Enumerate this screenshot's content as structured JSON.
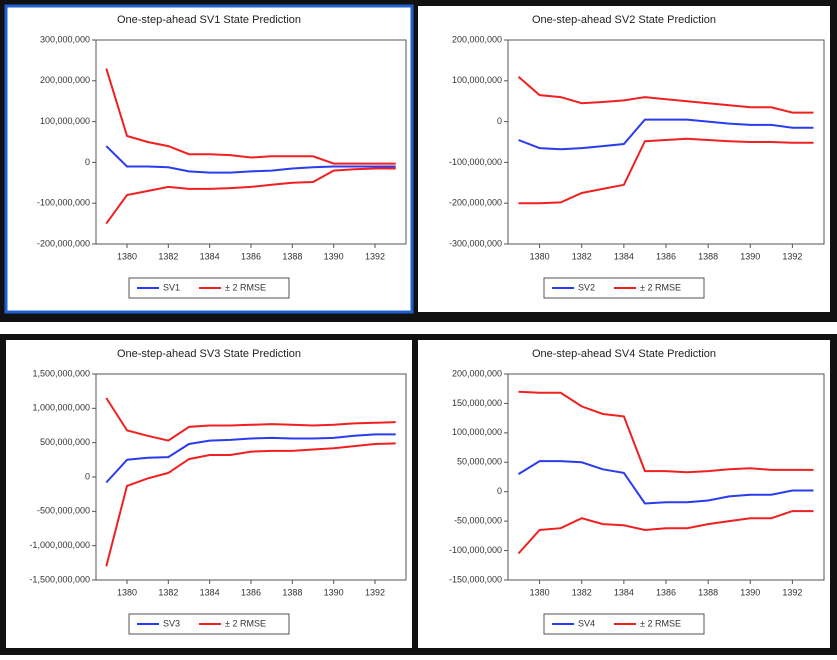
{
  "chart_data": [
    {
      "type": "line",
      "title": "One-step-ahead SV1 State Prediction",
      "x": [
        1379,
        1380,
        1381,
        1382,
        1383,
        1384,
        1385,
        1386,
        1387,
        1388,
        1389,
        1390,
        1391,
        1392,
        1393
      ],
      "xlim": [
        1378.5,
        1393.5
      ],
      "xticks": [
        1380,
        1382,
        1384,
        1386,
        1388,
        1390,
        1392
      ],
      "ylim": [
        -200000000,
        300000000
      ],
      "yticks": [
        {
          "value": -200000000,
          "label": "-200,000,000"
        },
        {
          "value": -100000000,
          "label": "-100,000,000"
        },
        0,
        {
          "value": 100000000,
          "label": "100,000,000"
        },
        {
          "value": 200000000,
          "label": "200,000,000"
        },
        {
          "value": 300000000,
          "label": "300,000,000"
        }
      ],
      "selected": true,
      "series": [
        {
          "name": "SV1",
          "color": "#2b3bf0",
          "values": [
            40000000,
            -10000000,
            -10000000,
            -12000000,
            -22000000,
            -25000000,
            -25000000,
            -22000000,
            -20000000,
            -15000000,
            -12000000,
            -10000000,
            -10000000,
            -10000000,
            -10000000
          ]
        },
        {
          "name": "± 2 RMSE",
          "color": "#f02020",
          "values": [
            230000000,
            65000000,
            50000000,
            40000000,
            20000000,
            20000000,
            18000000,
            12000000,
            15000000,
            15000000,
            15000000,
            -3000000,
            -3000000,
            -3000000,
            -3000000
          ],
          "lower": [
            -150000000,
            -80000000,
            -70000000,
            -60000000,
            -65000000,
            -65000000,
            -63000000,
            -60000000,
            -55000000,
            -50000000,
            -48000000,
            -20000000,
            -17000000,
            -15000000,
            -15000000
          ]
        }
      ]
    },
    {
      "type": "line",
      "title": "One-step-ahead SV2 State Prediction",
      "x": [
        1379,
        1380,
        1381,
        1382,
        1383,
        1384,
        1385,
        1386,
        1387,
        1388,
        1389,
        1390,
        1391,
        1392,
        1393
      ],
      "xlim": [
        1378.5,
        1393.5
      ],
      "xticks": [
        1380,
        1382,
        1384,
        1386,
        1388,
        1390,
        1392
      ],
      "ylim": [
        -300000000,
        200000000
      ],
      "yticks": [
        {
          "value": -300000000,
          "label": "-300,000,000"
        },
        {
          "value": -200000000,
          "label": "-200,000,000"
        },
        {
          "value": -100000000,
          "label": "-100,000,000"
        },
        0,
        {
          "value": 100000000,
          "label": "100,000,000"
        },
        {
          "value": 200000000,
          "label": "200,000,000"
        }
      ],
      "series": [
        {
          "name": "SV2",
          "color": "#2b3bf0",
          "values": [
            -45000000,
            -65000000,
            -68000000,
            -65000000,
            -60000000,
            -55000000,
            5000000,
            5000000,
            5000000,
            0,
            -5000000,
            -8000000,
            -8000000,
            -15000000,
            -15000000
          ]
        },
        {
          "name": "± 2 RMSE",
          "color": "#f02020",
          "values": [
            110000000,
            65000000,
            60000000,
            45000000,
            48000000,
            52000000,
            60000000,
            55000000,
            50000000,
            45000000,
            40000000,
            35000000,
            35000000,
            22000000,
            22000000
          ],
          "lower": [
            -200000000,
            -200000000,
            -198000000,
            -175000000,
            -165000000,
            -155000000,
            -48000000,
            -45000000,
            -42000000,
            -45000000,
            -48000000,
            -50000000,
            -50000000,
            -52000000,
            -52000000
          ]
        }
      ]
    },
    {
      "type": "line",
      "title": "One-step-ahead SV3 State Prediction",
      "x": [
        1379,
        1380,
        1381,
        1382,
        1383,
        1384,
        1385,
        1386,
        1387,
        1388,
        1389,
        1390,
        1391,
        1392,
        1393
      ],
      "xlim": [
        1378.5,
        1393.5
      ],
      "xticks": [
        1380,
        1382,
        1384,
        1386,
        1388,
        1390,
        1392
      ],
      "ylim": [
        -1500000000,
        1500000000
      ],
      "yticks": [
        {
          "value": -1500000000,
          "label": "-1,500,000,000"
        },
        {
          "value": -1000000000,
          "label": "-1,000,000,000"
        },
        {
          "value": -500000000,
          "label": "-500,000,000"
        },
        0,
        {
          "value": 500000000,
          "label": "500,000,000"
        },
        {
          "value": 1000000000,
          "label": "1,000,000,000"
        },
        {
          "value": 1500000000,
          "label": "1,500,000,000"
        }
      ],
      "series": [
        {
          "name": "SV3",
          "color": "#2b3bf0",
          "values": [
            -80000000,
            250000000,
            280000000,
            290000000,
            480000000,
            530000000,
            540000000,
            560000000,
            570000000,
            560000000,
            560000000,
            570000000,
            600000000,
            620000000,
            620000000
          ]
        },
        {
          "name": "± 2 RMSE",
          "color": "#f02020",
          "values": [
            1150000000,
            680000000,
            600000000,
            530000000,
            730000000,
            750000000,
            750000000,
            760000000,
            770000000,
            760000000,
            750000000,
            760000000,
            780000000,
            790000000,
            800000000
          ],
          "lower": [
            -1300000000,
            -130000000,
            -20000000,
            60000000,
            260000000,
            320000000,
            320000000,
            370000000,
            380000000,
            380000000,
            400000000,
            420000000,
            450000000,
            480000000,
            490000000
          ]
        }
      ]
    },
    {
      "type": "line",
      "title": "One-step-ahead SV4 State Prediction",
      "x": [
        1379,
        1380,
        1381,
        1382,
        1383,
        1384,
        1385,
        1386,
        1387,
        1388,
        1389,
        1390,
        1391,
        1392,
        1393
      ],
      "xlim": [
        1378.5,
        1393.5
      ],
      "xticks": [
        1380,
        1382,
        1384,
        1386,
        1388,
        1390,
        1392
      ],
      "ylim": [
        -150000000,
        200000000
      ],
      "yticks": [
        {
          "value": -150000000,
          "label": "-150,000,000"
        },
        {
          "value": -100000000,
          "label": "-100,000,000"
        },
        {
          "value": -50000000,
          "label": "-50,000,000"
        },
        0,
        {
          "value": 50000000,
          "label": "50,000,000"
        },
        {
          "value": 100000000,
          "label": "100,000,000"
        },
        {
          "value": 150000000,
          "label": "150,000,000"
        },
        {
          "value": 200000000,
          "label": "200,000,000"
        }
      ],
      "series": [
        {
          "name": "SV4",
          "color": "#2b3bf0",
          "values": [
            30000000,
            52000000,
            52000000,
            50000000,
            38000000,
            32000000,
            -20000000,
            -18000000,
            -18000000,
            -15000000,
            -8000000,
            -5000000,
            -5000000,
            2000000,
            2000000
          ]
        },
        {
          "name": "± 2 RMSE",
          "color": "#f02020",
          "values": [
            170000000,
            168000000,
            168000000,
            145000000,
            132000000,
            128000000,
            35000000,
            35000000,
            33000000,
            35000000,
            38000000,
            40000000,
            37000000,
            37000000,
            37000000
          ],
          "lower": [
            -105000000,
            -65000000,
            -62000000,
            -45000000,
            -55000000,
            -57000000,
            -65000000,
            -62000000,
            -62000000,
            -55000000,
            -50000000,
            -45000000,
            -45000000,
            -33000000,
            -33000000
          ]
        }
      ]
    }
  ]
}
